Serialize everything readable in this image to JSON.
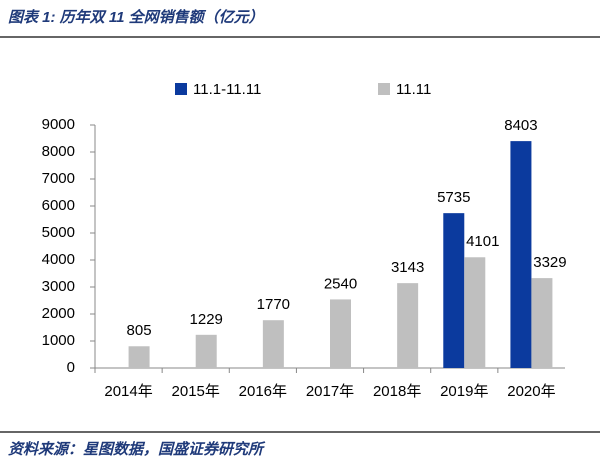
{
  "chart_data": {
    "type": "bar",
    "title": "图表 1:  历年双 11 全网销售额（亿元）",
    "source": "资料来源：星图数据，国盛证券研究所",
    "categories": [
      "2014年",
      "2015年",
      "2016年",
      "2017年",
      "2018年",
      "2019年",
      "2020年"
    ],
    "series": [
      {
        "name": "11.1-11.11",
        "color": "#0b3a9e",
        "values": [
          null,
          null,
          null,
          null,
          null,
          5735,
          8403
        ]
      },
      {
        "name": "11.11",
        "color": "#bfbfbf",
        "values": [
          805,
          1229,
          1770,
          2540,
          3143,
          4101,
          3329
        ]
      }
    ],
    "ylim": [
      0,
      9000
    ],
    "yticks": [
      0,
      1000,
      2000,
      3000,
      4000,
      5000,
      6000,
      7000,
      8000,
      9000
    ],
    "legend": "top"
  }
}
